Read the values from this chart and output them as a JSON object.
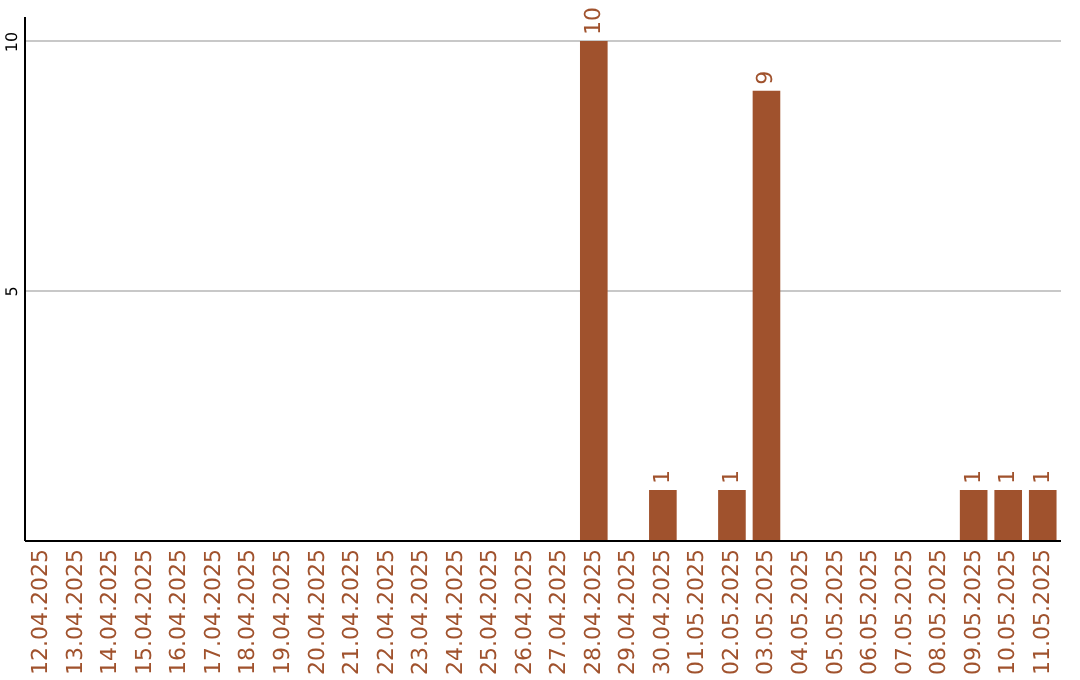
{
  "chart_data": {
    "type": "bar",
    "categories": [
      "12.04.2025",
      "13.04.2025",
      "14.04.2025",
      "15.04.2025",
      "16.04.2025",
      "17.04.2025",
      "18.04.2025",
      "19.04.2025",
      "20.04.2025",
      "21.04.2025",
      "22.04.2025",
      "23.04.2025",
      "24.04.2025",
      "25.04.2025",
      "26.04.2025",
      "27.04.2025",
      "28.04.2025",
      "29.04.2025",
      "30.04.2025",
      "01.05.2025",
      "02.05.2025",
      "03.05.2025",
      "04.05.2025",
      "05.05.2025",
      "06.05.2025",
      "07.05.2025",
      "08.05.2025",
      "09.05.2025",
      "10.05.2025",
      "11.05.2025"
    ],
    "values": [
      0,
      0,
      0,
      0,
      0,
      0,
      0,
      0,
      0,
      0,
      0,
      0,
      0,
      0,
      0,
      0,
      10,
      0,
      1,
      0,
      1,
      9,
      0,
      0,
      0,
      0,
      0,
      1,
      1,
      1
    ],
    "value_labels": [
      null,
      null,
      null,
      null,
      null,
      null,
      null,
      null,
      null,
      null,
      null,
      null,
      null,
      null,
      null,
      null,
      "10",
      null,
      "1",
      null,
      "1",
      "9",
      null,
      null,
      null,
      null,
      null,
      "1",
      "1",
      "1"
    ],
    "color": "#a0522d",
    "ylim": [
      0,
      10.5
    ],
    "yticks": [
      5,
      10
    ],
    "grid": "y"
  }
}
